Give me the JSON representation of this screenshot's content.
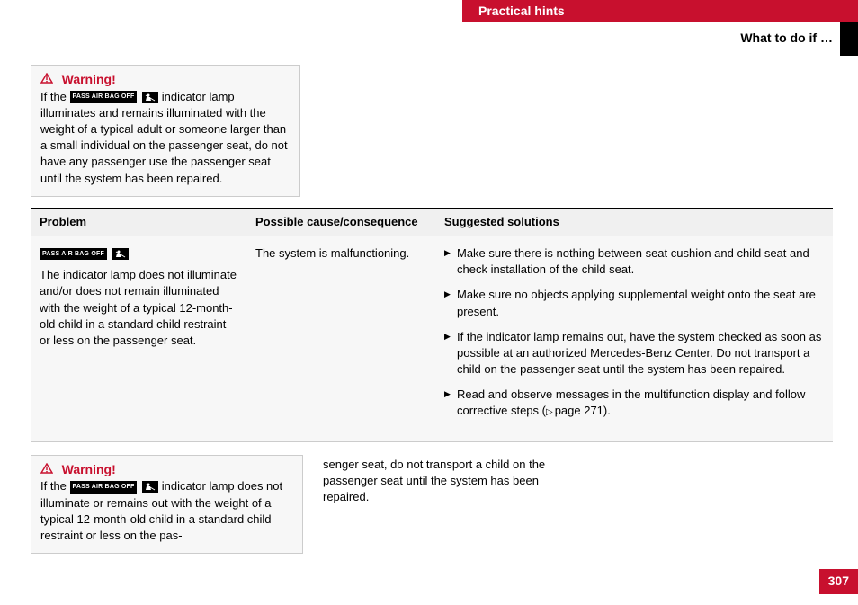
{
  "colors": {
    "accent": "#c8102e",
    "panel_bg": "#f7f7f7",
    "header_bg": "#f0f0f0",
    "border": "#cccccc",
    "text": "#000000",
    "badge_bg": "#000000",
    "badge_text": "#ffffff"
  },
  "typography": {
    "body_fontsize_pt": 10,
    "heading_fontsize_pt": 11,
    "font_family": "Arial"
  },
  "header": {
    "section": "Practical hints",
    "subsection": "What to do if …"
  },
  "badges": {
    "airbag_text": "PASS AIR BAG OFF",
    "child_icon": "child-seat-icon"
  },
  "warning1": {
    "title": "Warning!",
    "before": "If the ",
    "after": " indicator lamp illuminates and remains illuminated with the weight of a typical adult or someone larger than a small individual on the passenger seat, do not have any passenger use the passenger seat until the system has been repaired."
  },
  "table": {
    "headers": {
      "problem": "Problem",
      "cause": "Possible cause/consequence",
      "solutions": "Suggested solutions"
    },
    "row": {
      "problem_text": "The indicator lamp does not illuminate and/or does not remain illuminated with the weight of a typical 12-month-old child in a standard child restraint or less on the passenger seat.",
      "cause_text": "The system is malfunctioning.",
      "solutions": [
        "Make sure there is nothing between seat cushion and child seat and check installation of the child seat.",
        "Make sure no objects applying supplemental weight onto the seat are present.",
        "If the indicator lamp remains out, have the system checked as soon as possible at an authorized Mercedes-Benz Center. Do not transport a child on the passenger seat until the system has been repaired.",
        "Read and observe messages in the multifunction display and follow corrective steps ( page 271)."
      ],
      "page_ref_index": 3,
      "page_ref_text": "page 271"
    }
  },
  "warning2": {
    "title": "Warning!",
    "before": "If the ",
    "after": " indicator lamp does not illuminate or remains out with the weight of a typical 12-month-old child in a standard child restraint or less on the pas-"
  },
  "warning2_cont": "senger seat, do not transport a child on the passenger seat until the system has been repaired.",
  "page_number": "307"
}
